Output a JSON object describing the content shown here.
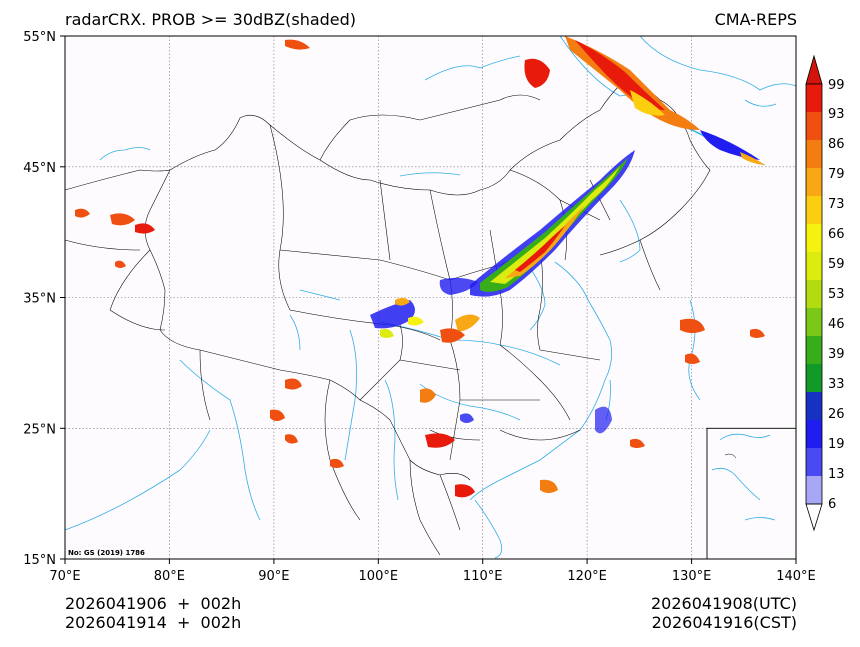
{
  "header": {
    "title": "radarCRX. PROB >= 30dBZ(shaded)",
    "model": "CMA-REPS"
  },
  "footer": {
    "init_utc": "2026041906  +  002h",
    "init_cst": "2026041914  +  002h",
    "valid_utc": "2026041908(UTC)",
    "valid_cst": "2026041916(CST)"
  },
  "map": {
    "approval_no": "No: GS (2019) 1786",
    "lon_labels": [
      "70°E",
      "80°E",
      "90°E",
      "100°E",
      "110°E",
      "120°E",
      "130°E",
      "140°E"
    ],
    "lat_labels": [
      "55°N",
      "45°N",
      "35°N",
      "25°N",
      "15°N"
    ],
    "lon_range": [
      70,
      140
    ],
    "lat_range": [
      15,
      55
    ]
  },
  "colorbar": {
    "levels": [
      "99",
      "93",
      "86",
      "79",
      "73",
      "66",
      "59",
      "53",
      "46",
      "39",
      "33",
      "26",
      "19",
      "13",
      "6"
    ],
    "colors": [
      "#e81a0c",
      "#ef4f10",
      "#f47d12",
      "#f8a815",
      "#fbcf10",
      "#f6f210",
      "#dcec0e",
      "#b2dc10",
      "#7cc818",
      "#37ad1a",
      "#119a28",
      "#1632c2",
      "#1f1df0",
      "#4a4af2",
      "#a7a7f5"
    ],
    "max_color": "#d2140c"
  },
  "colors": {
    "coast": "#31aee6",
    "border": "#000000",
    "map_bg": "#fdfbfd"
  }
}
